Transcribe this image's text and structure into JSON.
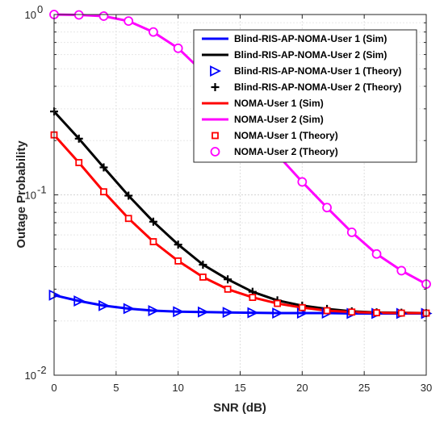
{
  "chart_data": {
    "type": "line",
    "xlabel": "SNR (dB)",
    "ylabel": "Outage Probability",
    "xlim": [
      0,
      30
    ],
    "ylim": [
      0.01,
      1
    ],
    "yscale": "log",
    "grid": true,
    "legend_position": "top-right",
    "x_ticks": [
      {
        "value": 0,
        "label": "0"
      },
      {
        "value": 5,
        "label": "5"
      },
      {
        "value": 10,
        "label": "10"
      },
      {
        "value": 15,
        "label": "15"
      },
      {
        "value": 20,
        "label": "20"
      },
      {
        "value": 25,
        "label": "25"
      },
      {
        "value": 30,
        "label": "30"
      }
    ],
    "y_ticks": [
      {
        "value": 0.01,
        "base": "10",
        "exp": "-2"
      },
      {
        "value": 0.1,
        "base": "10",
        "exp": "-1"
      },
      {
        "value": 1,
        "base": "10",
        "exp": "0"
      }
    ],
    "series": [
      {
        "name": "Blind-RIS-AP-NOMA-User 1 (Sim)",
        "color": "#0000ff",
        "style": "line",
        "x": [
          0,
          2,
          4,
          6,
          8,
          10,
          12,
          14,
          16,
          18,
          20,
          22,
          24,
          26,
          28,
          30
        ],
        "y": [
          0.0278,
          0.0258,
          0.0243,
          0.0234,
          0.0228,
          0.0225,
          0.0224,
          0.0223,
          0.0222,
          0.0221,
          0.0221,
          0.0221,
          0.022,
          0.022,
          0.022,
          0.022
        ]
      },
      {
        "name": "Blind-RIS-AP-NOMA-User 2 (Sim)",
        "color": "#000000",
        "style": "line",
        "x": [
          0,
          2,
          4,
          6,
          8,
          10,
          12,
          14,
          16,
          18,
          20,
          22,
          24,
          26,
          28,
          30
        ],
        "y": [
          0.29,
          0.205,
          0.142,
          0.099,
          0.071,
          0.053,
          0.041,
          0.034,
          0.029,
          0.026,
          0.0243,
          0.0233,
          0.0226,
          0.0223,
          0.0222,
          0.0221
        ]
      },
      {
        "name": "Blind-RIS-AP-NOMA-User 1 (Theory)",
        "color": "#0000ff",
        "style": "marker",
        "marker": "triangle-right",
        "x": [
          0,
          2,
          4,
          6,
          8,
          10,
          12,
          14,
          16,
          18,
          20,
          22,
          24,
          26,
          28,
          30
        ],
        "y": [
          0.0278,
          0.0258,
          0.0243,
          0.0234,
          0.0228,
          0.0225,
          0.0224,
          0.0223,
          0.0222,
          0.0221,
          0.0221,
          0.0221,
          0.022,
          0.022,
          0.022,
          0.022
        ]
      },
      {
        "name": "Blind-RIS-AP-NOMA-User 2 (Theory)",
        "color": "#000000",
        "style": "marker",
        "marker": "plus",
        "x": [
          0,
          2,
          4,
          6,
          8,
          10,
          12,
          14,
          16,
          18,
          20,
          22,
          24,
          26,
          28,
          30
        ],
        "y": [
          0.29,
          0.205,
          0.142,
          0.099,
          0.071,
          0.053,
          0.041,
          0.034,
          0.029,
          0.026,
          0.0243,
          0.0233,
          0.0226,
          0.0223,
          0.0222,
          0.0221
        ]
      },
      {
        "name": "NOMA-User 1 (Sim)",
        "color": "#ff0000",
        "style": "line",
        "x": [
          0,
          2,
          4,
          6,
          8,
          10,
          12,
          14,
          16,
          18,
          20,
          22,
          24,
          26,
          28,
          30
        ],
        "y": [
          0.215,
          0.151,
          0.104,
          0.074,
          0.055,
          0.043,
          0.035,
          0.03,
          0.027,
          0.025,
          0.0237,
          0.0228,
          0.0224,
          0.0222,
          0.0221,
          0.0221
        ]
      },
      {
        "name": "NOMA-User 2 (Sim)",
        "color": "#ff00ff",
        "style": "line",
        "x": [
          0,
          2,
          4,
          6,
          8,
          10,
          12,
          14,
          16,
          18,
          20,
          22,
          24,
          26,
          28,
          30
        ],
        "y": [
          1.0,
          0.995,
          0.98,
          0.92,
          0.8,
          0.65,
          0.48,
          0.34,
          0.24,
          0.167,
          0.118,
          0.085,
          0.062,
          0.047,
          0.038,
          0.032
        ]
      },
      {
        "name": "NOMA-User 1 (Theory)",
        "color": "#ff0000",
        "style": "marker",
        "marker": "square",
        "x": [
          0,
          2,
          4,
          6,
          8,
          10,
          12,
          14,
          16,
          18,
          20,
          22,
          24,
          26,
          28,
          30
        ],
        "y": [
          0.215,
          0.151,
          0.104,
          0.074,
          0.055,
          0.043,
          0.035,
          0.03,
          0.027,
          0.025,
          0.0237,
          0.0228,
          0.0224,
          0.0222,
          0.0221,
          0.0221
        ]
      },
      {
        "name": "NOMA-User 2 (Theory)",
        "color": "#ff00ff",
        "style": "marker",
        "marker": "circle",
        "x": [
          0,
          2,
          4,
          6,
          8,
          10,
          12,
          14,
          16,
          18,
          20,
          22,
          24,
          26,
          28,
          30
        ],
        "y": [
          1.0,
          0.995,
          0.98,
          0.92,
          0.8,
          0.65,
          0.48,
          0.34,
          0.24,
          0.167,
          0.118,
          0.085,
          0.062,
          0.047,
          0.038,
          0.032
        ]
      }
    ]
  }
}
